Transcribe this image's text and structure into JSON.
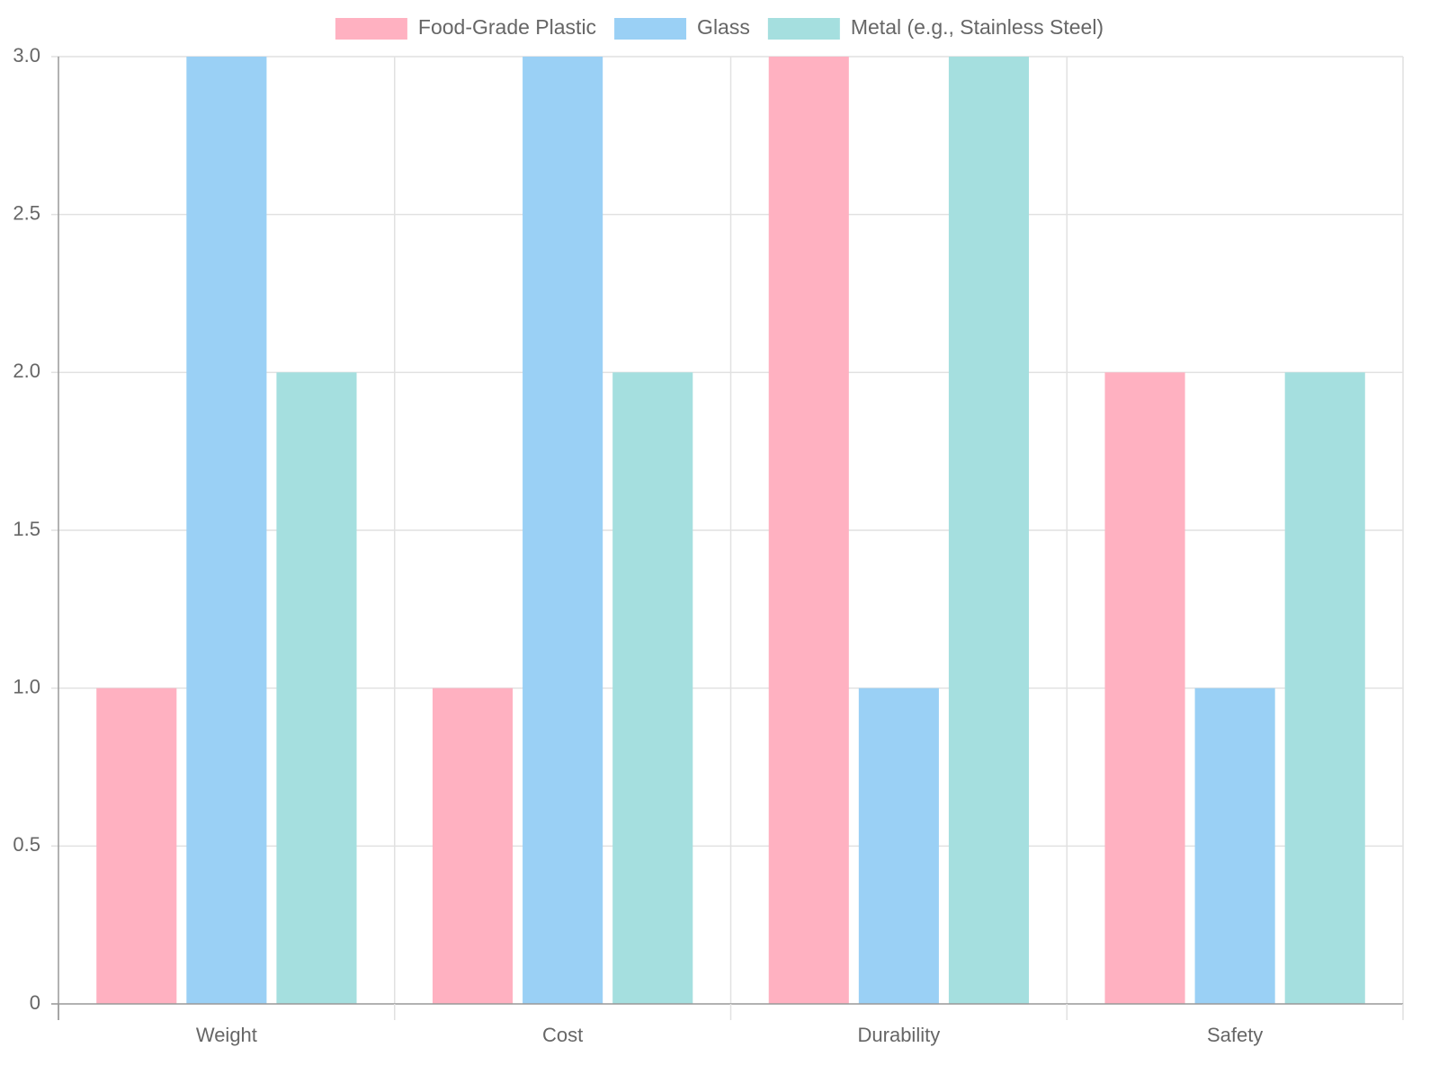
{
  "chart_data": {
    "type": "bar",
    "title": "",
    "xlabel": "",
    "ylabel": "",
    "categories": [
      "Weight",
      "Cost",
      "Durability",
      "Safety"
    ],
    "series": [
      {
        "name": "Food-Grade Plastic",
        "values": [
          1,
          1,
          3,
          2
        ],
        "color": "#ffb1c1"
      },
      {
        "name": "Glass",
        "values": [
          3,
          3,
          1,
          1
        ],
        "color": "#9ad0f5"
      },
      {
        "name": "Metal (e.g., Stainless Steel)",
        "values": [
          2,
          2,
          3,
          2
        ],
        "color": "#a5dfdf"
      }
    ],
    "ylim": [
      0,
      3
    ],
    "yticks": [
      "0",
      "0.5",
      "1.0",
      "1.5",
      "2.0",
      "2.5",
      "3.0"
    ],
    "grid": true,
    "legend_position": "top-center"
  }
}
